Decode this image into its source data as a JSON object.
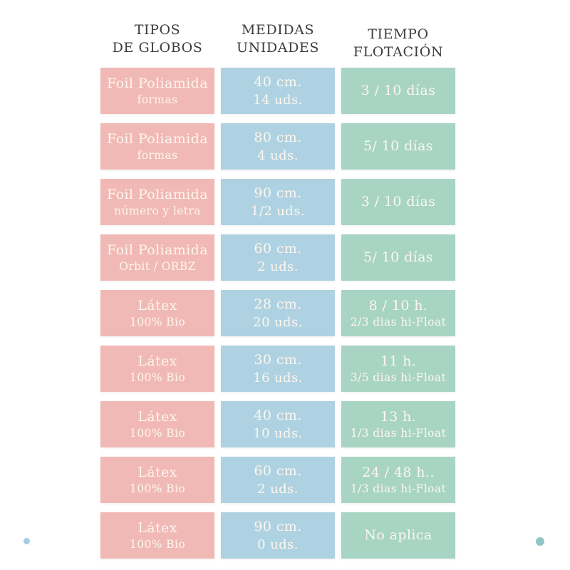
{
  "page": {
    "background": "#ffffff"
  },
  "headers": [
    {
      "id": "tipos",
      "line1": "TIPOS",
      "line2": "DE GLOBOS"
    },
    {
      "id": "medidas",
      "line1": "MEDIDAS",
      "line2": "UNIDADES"
    },
    {
      "id": "tiempo",
      "line1": "TIEMPO",
      "line2": "FLOTACIÓN"
    }
  ],
  "colors": {
    "tipo_cell": "#f1b9b6",
    "medida_cell": "#aed2e2",
    "tiempo_cell": "#a8d4c4",
    "cell_text": "#fdf6ee",
    "header_text": "#3e3c3d",
    "dot_blue": "#a3cde0",
    "dot_teal": "#8ec7c6"
  },
  "rows": [
    {
      "tipo": {
        "line1": "Foil Poliamida",
        "line2": "formas"
      },
      "medida": {
        "line1": "40 cm.",
        "line2": "14 uds."
      },
      "tiempo": {
        "line1": "3 / 10 días",
        "line2": ""
      }
    },
    {
      "tipo": {
        "line1": "Foil Poliamida",
        "line2": "formas"
      },
      "medida": {
        "line1": "80 cm.",
        "line2": "4 uds."
      },
      "tiempo": {
        "line1": "5/ 10 días",
        "line2": ""
      }
    },
    {
      "tipo": {
        "line1": "Foil Poliamida",
        "line2": "número y letra"
      },
      "medida": {
        "line1": "90 cm.",
        "line2": "1/2 uds."
      },
      "tiempo": {
        "line1": "3 / 10 días",
        "line2": ""
      }
    },
    {
      "tipo": {
        "line1": "Foil Poliamida",
        "line2": "Orbit / ORBZ"
      },
      "medida": {
        "line1": "60 cm.",
        "line2": "2 uds."
      },
      "tiempo": {
        "line1": "5/ 10 días",
        "line2": ""
      }
    },
    {
      "tipo": {
        "line1": "Látex",
        "line2": "100% Bio"
      },
      "medida": {
        "line1": "28 cm.",
        "line2": "20 uds."
      },
      "tiempo": {
        "line1": "8 / 10 h.",
        "line2": "2/3 dias hi-Float"
      }
    },
    {
      "tipo": {
        "line1": "Látex",
        "line2": "100% Bio"
      },
      "medida": {
        "line1": "30 cm.",
        "line2": "16 uds."
      },
      "tiempo": {
        "line1": "11 h.",
        "line2": "3/5 dias hi-Float"
      }
    },
    {
      "tipo": {
        "line1": "Látex",
        "line2": "100% Bio"
      },
      "medida": {
        "line1": "40 cm.",
        "line2": "10 uds."
      },
      "tiempo": {
        "line1": "13 h.",
        "line2": "1/3 dias hi-Float"
      }
    },
    {
      "tipo": {
        "line1": "Látex",
        "line2": "100% Bio"
      },
      "medida": {
        "line1": "60 cm.",
        "line2": "2 uds."
      },
      "tiempo": {
        "line1": "24 / 48 h..",
        "line2": "1/3 dias hi-Float"
      }
    },
    {
      "tipo": {
        "line1": "Látex",
        "line2": "100% Bio"
      },
      "medida": {
        "line1": "90 cm.",
        "line2": "0 uds."
      },
      "tiempo": {
        "line1": "No aplica",
        "line2": ""
      }
    }
  ],
  "decorations": [
    {
      "name": "dot-blue-bottom-left",
      "color": "#a3cde0"
    },
    {
      "name": "dot-teal-bottom-right",
      "color": "#8ec7c6"
    }
  ],
  "chart_data": {
    "type": "table",
    "title": "",
    "columns": [
      "TIPOS DE GLOBOS",
      "MEDIDAS UNIDADES",
      "TIEMPO FLOTACIÓN"
    ],
    "rows": [
      [
        "Foil Poliamida formas",
        "40 cm. 14 uds.",
        "3 / 10 días"
      ],
      [
        "Foil Poliamida formas",
        "80 cm. 4 uds.",
        "5/ 10 días"
      ],
      [
        "Foil Poliamida número y letra",
        "90 cm. 1/2 uds.",
        "3 / 10 días"
      ],
      [
        "Foil Poliamida Orbit / ORBZ",
        "60 cm. 2 uds.",
        "5/ 10 días"
      ],
      [
        "Látex 100% Bio",
        "28 cm. 20 uds.",
        "8 / 10 h. 2/3 dias hi-Float"
      ],
      [
        "Látex 100% Bio",
        "30 cm. 16 uds.",
        "11 h. 3/5 dias hi-Float"
      ],
      [
        "Látex 100% Bio",
        "40 cm. 10 uds.",
        "13 h. 1/3 dias hi-Float"
      ],
      [
        "Látex 100% Bio",
        "60 cm. 2 uds.",
        "24 / 48 h.. 1/3 dias hi-Float"
      ],
      [
        "Látex 100% Bio",
        "90 cm. 0 uds.",
        "No aplica"
      ]
    ],
    "layout": {
      "grid": "9 rows x 3 columns",
      "legend": "none"
    }
  }
}
